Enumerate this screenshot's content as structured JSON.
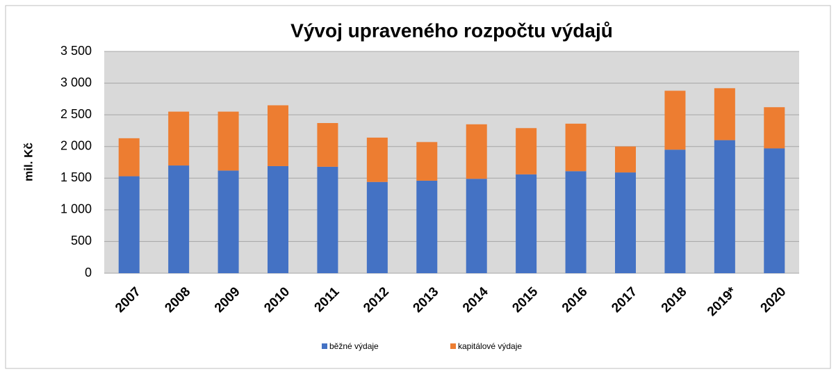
{
  "chart_data": {
    "type": "stacked_bar",
    "title": "Vývoj upraveného rozpočtu výdajů",
    "ylabel": "mil. Kč",
    "categories": [
      "2007",
      "2008",
      "2009",
      "2010",
      "2011",
      "2012",
      "2013",
      "2014",
      "2015",
      "2016",
      "2017",
      "2018",
      "2019*",
      "2020"
    ],
    "series": [
      {
        "name": "běžné výdaje",
        "color": "#4472c4",
        "values": [
          1530,
          1700,
          1620,
          1690,
          1680,
          1440,
          1460,
          1490,
          1560,
          1610,
          1590,
          1950,
          2100,
          1970
        ]
      },
      {
        "name": "kapitálové výdaje",
        "color": "#ed7d31",
        "values": [
          600,
          850,
          930,
          960,
          690,
          700,
          610,
          860,
          730,
          750,
          410,
          930,
          820,
          650
        ]
      }
    ],
    "ylim": [
      0,
      3500
    ],
    "yticks": [
      0,
      500,
      {
        "value": 1000,
        "label": "1 000"
      },
      {
        "value": 1500,
        "label": "1 500"
      },
      {
        "value": 2000,
        "label": "2 000"
      },
      {
        "value": 2500,
        "label": "2 500"
      },
      {
        "value": 3000,
        "label": "3 000"
      },
      {
        "value": 3500,
        "label": "3 500"
      }
    ],
    "grid": true,
    "legend": "bottom"
  }
}
